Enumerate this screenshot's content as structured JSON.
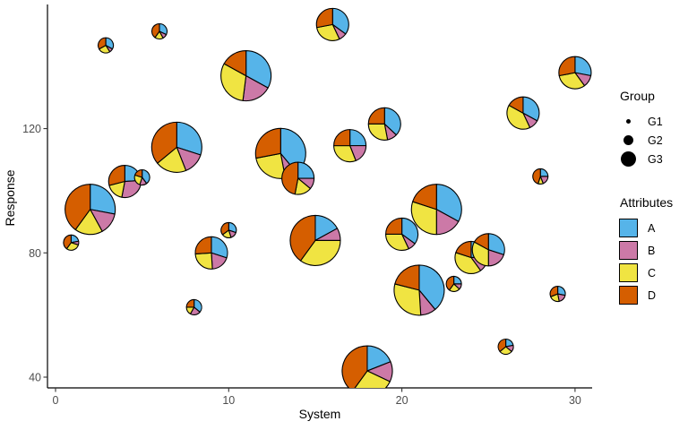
{
  "chart_data": {
    "type": "scatterpie",
    "title": "",
    "xlabel": "System",
    "ylabel": "Response",
    "x_ticks": [
      0,
      10,
      20,
      30
    ],
    "y_ticks": [
      40,
      80,
      120
    ],
    "xlim": [
      -0.5,
      31
    ],
    "ylim": [
      36.5,
      161
    ],
    "grid": false,
    "legend": {
      "position": "right",
      "size_title": "Group",
      "fill_title": "Attributes"
    },
    "attributes": [
      {
        "label": "A",
        "color": "#56B4E9"
      },
      {
        "label": "B",
        "color": "#CC79A7"
      },
      {
        "label": "C",
        "color": "#F0E442"
      },
      {
        "label": "D",
        "color": "#D55E00"
      }
    ],
    "groups": [
      {
        "label": "G1",
        "pie_radius_px": 8.5
      },
      {
        "label": "G2",
        "pie_radius_px": 18
      },
      {
        "label": "G3",
        "pie_radius_px": 28
      }
    ],
    "points": [
      {
        "x": 7,
        "y": 114,
        "group": "G3",
        "values": {
          "A": 0.3,
          "B": 0.14,
          "C": 0.2,
          "D": 0.36
        }
      },
      {
        "x": 11,
        "y": 137,
        "group": "G3",
        "values": {
          "A": 0.33,
          "B": 0.19,
          "C": 0.31,
          "D": 0.17
        }
      },
      {
        "x": 2,
        "y": 94,
        "group": "G3",
        "values": {
          "A": 0.28,
          "B": 0.14,
          "C": 0.18,
          "D": 0.4
        }
      },
      {
        "x": 13,
        "y": 112,
        "group": "G3",
        "values": {
          "A": 0.39,
          "B": 0.08,
          "C": 0.25,
          "D": 0.28
        }
      },
      {
        "x": 22,
        "y": 94,
        "group": "G3",
        "values": {
          "A": 0.33,
          "B": 0.17,
          "C": 0.3,
          "D": 0.2
        }
      },
      {
        "x": 15,
        "y": 84,
        "group": "G3",
        "values": {
          "A": 0.17,
          "B": 0.08,
          "C": 0.35,
          "D": 0.4
        }
      },
      {
        "x": 21,
        "y": 68,
        "group": "G3",
        "values": {
          "A": 0.39,
          "B": 0.1,
          "C": 0.3,
          "D": 0.21
        }
      },
      {
        "x": 18,
        "y": 42,
        "group": "G3",
        "values": {
          "A": 0.19,
          "B": 0.13,
          "C": 0.28,
          "D": 0.4
        }
      },
      {
        "x": 16,
        "y": 153.5,
        "group": "G2",
        "values": {
          "A": 0.35,
          "B": 0.08,
          "C": 0.29,
          "D": 0.28
        }
      },
      {
        "x": 4,
        "y": 103,
        "group": "G2",
        "values": {
          "A": 0.24,
          "B": 0.29,
          "C": 0.18,
          "D": 0.29
        }
      },
      {
        "x": 9,
        "y": 80,
        "group": "G2",
        "values": {
          "A": 0.3,
          "B": 0.19,
          "C": 0.25,
          "D": 0.26
        }
      },
      {
        "x": 14,
        "y": 104,
        "group": "G2",
        "values": {
          "A": 0.25,
          "B": 0.11,
          "C": 0.17,
          "D": 0.47
        }
      },
      {
        "x": 17,
        "y": 114.5,
        "group": "G2",
        "values": {
          "A": 0.25,
          "B": 0.19,
          "C": 0.31,
          "D": 0.25
        }
      },
      {
        "x": 19,
        "y": 121.5,
        "group": "G2",
        "values": {
          "A": 0.37,
          "B": 0.1,
          "C": 0.28,
          "D": 0.25
        }
      },
      {
        "x": 30,
        "y": 138,
        "group": "G2",
        "values": {
          "A": 0.28,
          "B": 0.12,
          "C": 0.32,
          "D": 0.28
        }
      },
      {
        "x": 27,
        "y": 125,
        "group": "G2",
        "values": {
          "A": 0.33,
          "B": 0.1,
          "C": 0.4,
          "D": 0.17
        }
      },
      {
        "x": 20,
        "y": 86,
        "group": "G2",
        "values": {
          "A": 0.35,
          "B": 0.08,
          "C": 0.32,
          "D": 0.25
        }
      },
      {
        "x": 24,
        "y": 78.5,
        "group": "G2",
        "values": {
          "A": 0.25,
          "B": 0.15,
          "C": 0.4,
          "D": 0.2
        }
      },
      {
        "x": 25,
        "y": 81,
        "group": "G2",
        "values": {
          "A": 0.3,
          "B": 0.2,
          "C": 0.33,
          "D": 0.17
        }
      },
      {
        "x": 2.9,
        "y": 146.8,
        "group": "G1",
        "values": {
          "A": 0.33,
          "B": 0.08,
          "C": 0.26,
          "D": 0.33
        }
      },
      {
        "x": 6,
        "y": 151.3,
        "group": "G1",
        "values": {
          "A": 0.32,
          "B": 0.1,
          "C": 0.18,
          "D": 0.4
        }
      },
      {
        "x": 5,
        "y": 104.3,
        "group": "G1",
        "values": {
          "A": 0.4,
          "B": 0.15,
          "C": 0.25,
          "D": 0.2
        }
      },
      {
        "x": 0.9,
        "y": 83.3,
        "group": "G1",
        "values": {
          "A": 0.22,
          "B": 0.08,
          "C": 0.3,
          "D": 0.4
        }
      },
      {
        "x": 10,
        "y": 87.3,
        "group": "G1",
        "values": {
          "A": 0.3,
          "B": 0.15,
          "C": 0.2,
          "D": 0.35
        }
      },
      {
        "x": 28,
        "y": 104.6,
        "group": "G1",
        "values": {
          "A": 0.25,
          "B": 0.19,
          "C": 0.11,
          "D": 0.45
        }
      },
      {
        "x": 23,
        "y": 70,
        "group": "G1",
        "values": {
          "A": 0.25,
          "B": 0.12,
          "C": 0.23,
          "D": 0.4
        }
      },
      {
        "x": 29,
        "y": 66.8,
        "group": "G1",
        "values": {
          "A": 0.28,
          "B": 0.19,
          "C": 0.22,
          "D": 0.31
        }
      },
      {
        "x": 26,
        "y": 49.8,
        "group": "G1",
        "values": {
          "A": 0.22,
          "B": 0.14,
          "C": 0.28,
          "D": 0.36
        }
      },
      {
        "x": 8,
        "y": 62.5,
        "group": "G1",
        "values": {
          "A": 0.36,
          "B": 0.22,
          "C": 0.17,
          "D": 0.25
        }
      }
    ]
  }
}
